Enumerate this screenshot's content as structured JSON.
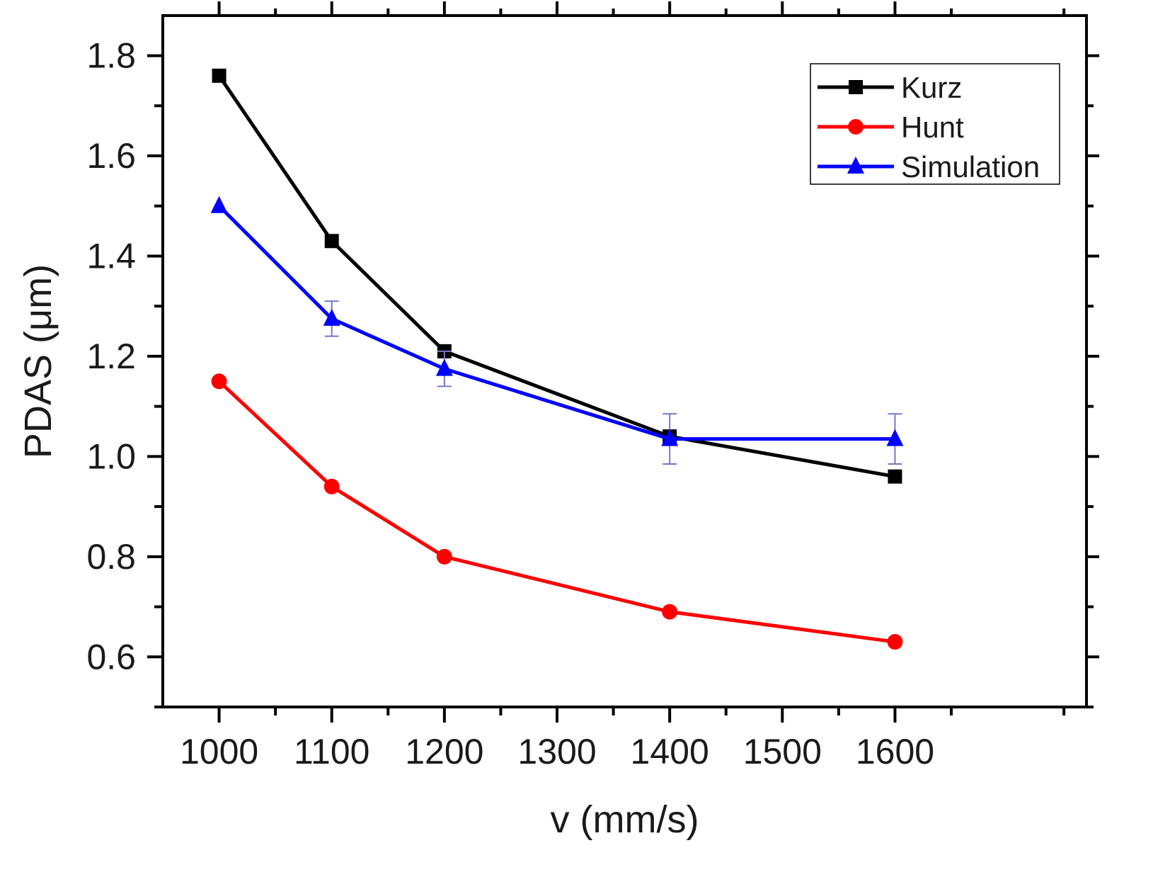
{
  "chart_data": {
    "type": "line",
    "title": "",
    "xlabel": "v (mm/s)",
    "ylabel": "PDAS (μm)",
    "xlim": [
      950,
      1770
    ],
    "ylim": [
      0.5,
      1.88
    ],
    "xticks": [
      1000,
      1100,
      1200,
      1300,
      1400,
      1500,
      1600
    ],
    "xtick_labels": [
      "1000",
      "1100",
      "1200",
      "1300",
      "1400",
      "1500",
      "1600"
    ],
    "yticks": [
      0.6,
      0.8,
      1.0,
      1.2,
      1.4,
      1.6,
      1.8
    ],
    "ytick_labels": [
      "0.6",
      "0.8",
      "1.0",
      "1.2",
      "1.4",
      "1.6",
      "1.8"
    ],
    "grid": false,
    "legend_position": "top-right",
    "series": [
      {
        "name": "Kurz",
        "color": "#000000",
        "marker": "square",
        "x": [
          1000,
          1100,
          1200,
          1400,
          1600
        ],
        "y": [
          1.76,
          1.43,
          1.21,
          1.04,
          0.96
        ]
      },
      {
        "name": "Hunt",
        "color": "#ff0000",
        "marker": "circle",
        "x": [
          1000,
          1100,
          1200,
          1400,
          1600
        ],
        "y": [
          1.15,
          0.94,
          0.8,
          0.69,
          0.63
        ]
      },
      {
        "name": "Simulation",
        "color": "#0000ff",
        "marker": "triangle",
        "x": [
          1000,
          1100,
          1200,
          1400,
          1600
        ],
        "y": [
          1.5,
          1.275,
          1.175,
          1.035,
          1.035
        ],
        "error": [
          0,
          0.035,
          0.035,
          0.05,
          0.05
        ]
      }
    ]
  }
}
